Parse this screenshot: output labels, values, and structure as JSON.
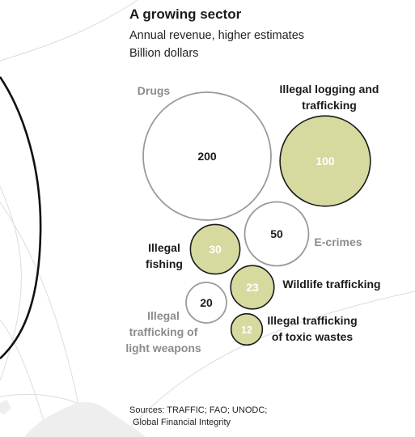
{
  "title": "A growing sector",
  "subtitle": "Annual revenue, higher estimates",
  "unit": "Billion dollars",
  "sources": [
    "Sources: TRAFFIC; FAO; UNODC;",
    "Global Financial Integrity"
  ],
  "colors": {
    "filled": "#d6da9f",
    "filled_stroke": "#1a1a1a",
    "outline_stroke": "#9a9a9a",
    "dark_text": "#1a1a1a",
    "grey_text": "#8c8c8c",
    "light_value_text": "#ffffff"
  },
  "chart_data": {
    "type": "bubble",
    "values_unit": "Billion dollars",
    "bubbles": [
      {
        "label": "Drugs",
        "value": 200,
        "style": "outline"
      },
      {
        "label": "Illegal logging and trafficking",
        "value": 100,
        "style": "filled"
      },
      {
        "label": "E-crimes",
        "value": 50,
        "style": "outline"
      },
      {
        "label": "Illegal fishing",
        "value": 30,
        "style": "filled"
      },
      {
        "label": "Wildlife trafficking",
        "value": 23,
        "style": "filled"
      },
      {
        "label": "Illegal trafficking of light weapons",
        "value": 20,
        "style": "outline"
      },
      {
        "label": "Illegal trafficking of toxic wastes",
        "value": 12,
        "style": "filled"
      }
    ]
  }
}
